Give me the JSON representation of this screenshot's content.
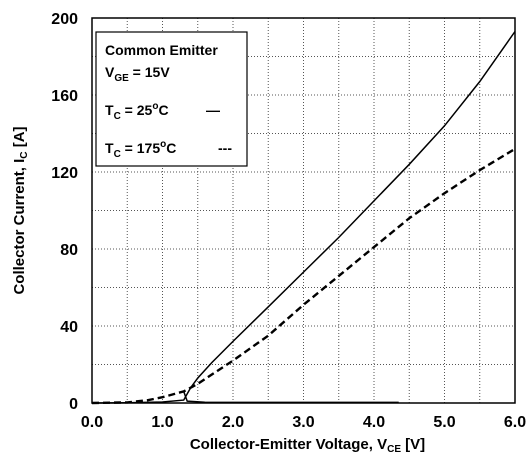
{
  "chart_data": {
    "type": "line",
    "title": "",
    "xlabel": {
      "main": "Collector-Emitter Voltage, V",
      "sub": "CE",
      "unit": " [V]"
    },
    "ylabel": {
      "main": "Collector Current, I",
      "sub": "C",
      "unit": " [A]"
    },
    "xlim": [
      0.0,
      6.0
    ],
    "ylim": [
      0,
      200
    ],
    "x_ticks": [
      "0.0",
      "1.0",
      "2.0",
      "3.0",
      "4.0",
      "5.0",
      "6.0"
    ],
    "y_ticks": [
      "0",
      "40",
      "80",
      "120",
      "160",
      "200"
    ],
    "grid": true,
    "legend": {
      "position": "top-left",
      "line1": "Common Emitter",
      "line2_main": "V",
      "line2_sub": "GE",
      "line2_rest": " = 15V"
    },
    "series": [
      {
        "name_main": "T",
        "name_sub": "C",
        "name_rest": " = 25",
        "name_sup": "o",
        "name_unit": "C",
        "style": "solid",
        "marker": "—",
        "x": [
          0.0,
          0.5,
          1.0,
          1.3,
          1.4,
          1.5,
          1.7,
          2.0,
          2.5,
          3.0,
          3.5,
          4.0,
          4.5,
          5.0,
          5.5,
          6.0
        ],
        "y": [
          0,
          0.1,
          0.5,
          1.5,
          8,
          13,
          21,
          32,
          50,
          68,
          86,
          105,
          124,
          144,
          167,
          193
        ]
      },
      {
        "name_main": "T",
        "name_sub": "C",
        "name_rest": " = 175",
        "name_sup": "o",
        "name_unit": "C",
        "style": "dashed",
        "marker": "---",
        "x": [
          0.0,
          0.5,
          0.8,
          1.0,
          1.3,
          1.5,
          2.0,
          2.5,
          3.0,
          3.5,
          4.0,
          4.5,
          5.0,
          5.5,
          6.0
        ],
        "y": [
          0,
          0.3,
          1.5,
          3,
          6,
          10,
          22,
          35,
          51,
          66,
          81,
          96,
          109,
          121,
          132
        ]
      }
    ],
    "lower_branch": {
      "description_free": true,
      "x": [
        1.3,
        1.35,
        1.6,
        2.5,
        4.35
      ],
      "y": [
        6,
        1.0,
        0.4,
        0.3,
        0.3
      ]
    }
  }
}
